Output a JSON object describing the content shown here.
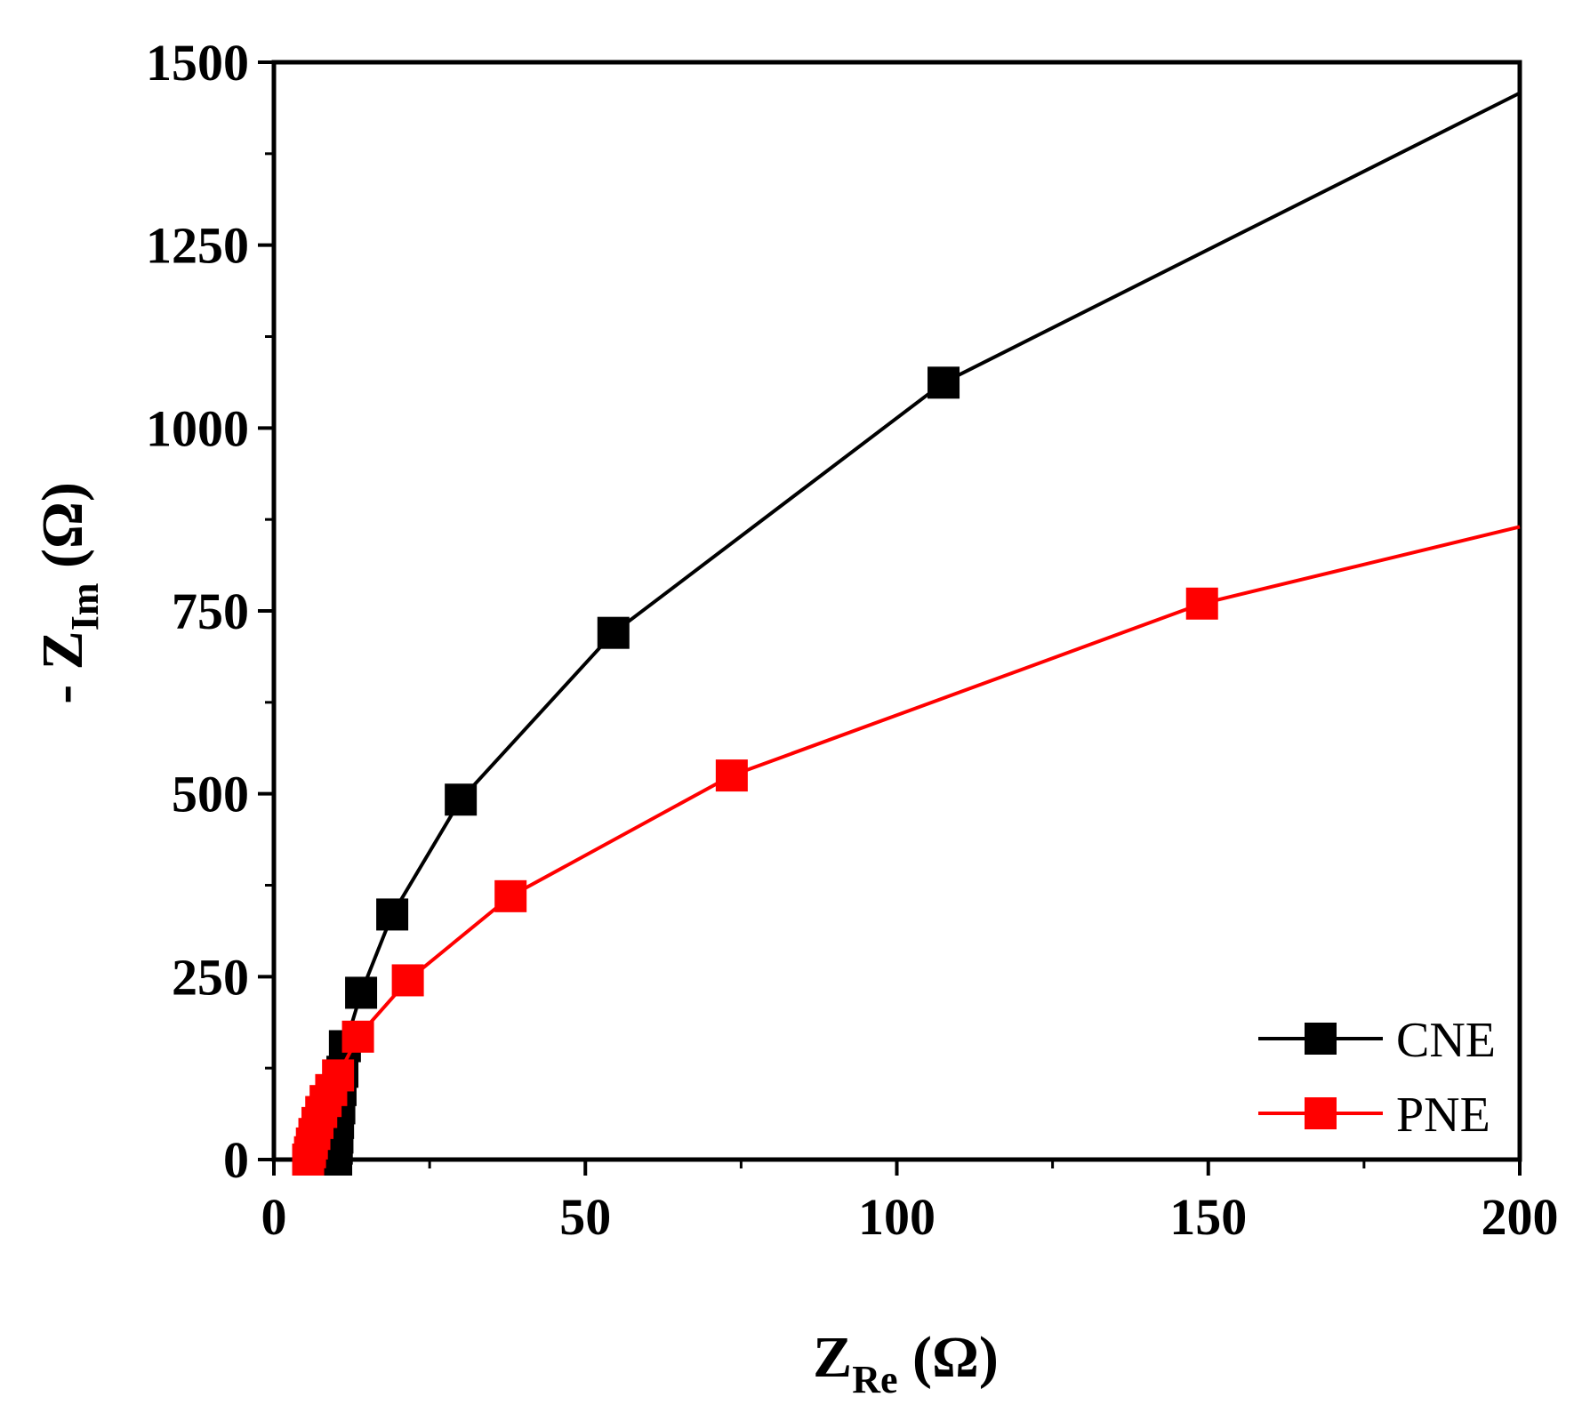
{
  "chart_data": {
    "type": "line",
    "title": "",
    "xlabel": {
      "prefix": "Z",
      "subscript": "Re",
      "suffix": " (Ω)"
    },
    "ylabel": {
      "prefix": "- Z",
      "subscript": "Im",
      "suffix": " (Ω)"
    },
    "xlim": [
      0,
      200
    ],
    "ylim": [
      0,
      1500
    ],
    "xticks": [
      0,
      50,
      100,
      150,
      200
    ],
    "yticks": [
      0,
      250,
      500,
      750,
      1000,
      1250,
      1500
    ],
    "xtick_labels": [
      "0",
      "50",
      "100",
      "150",
      "200"
    ],
    "ytick_labels": [
      "0",
      "250",
      "500",
      "750",
      "1000",
      "1250",
      "1500"
    ],
    "grid": false,
    "legend_position": "bottom-right",
    "series": [
      {
        "name": "CNE",
        "color": "#000000",
        "marker": "square",
        "x": [
          10.0,
          10.1,
          10.2,
          10.3,
          10.5,
          10.7,
          11.0,
          11.4,
          14.0,
          19.0,
          30.0,
          54.5,
          107.5,
          200.0
        ],
        "y": [
          0,
          15,
          30,
          50,
          70,
          95,
          120,
          155,
          228,
          335,
          492,
          720,
          1062,
          1458
        ],
        "marker_indices": [
          0,
          1,
          2,
          3,
          4,
          5,
          6,
          7,
          8,
          9,
          10,
          11,
          12
        ]
      },
      {
        "name": "PNE",
        "color": "#ff0000",
        "marker": "square",
        "x": [
          5.5,
          5.8,
          6.1,
          6.5,
          7.0,
          7.6,
          8.3,
          9.2,
          10.3,
          13.5,
          21.5,
          38.0,
          73.5,
          149.0,
          200.0
        ],
        "y": [
          0,
          10,
          22,
          35,
          50,
          65,
          80,
          95,
          115,
          168,
          245,
          360,
          525,
          760,
          865
        ],
        "marker_indices": [
          0,
          1,
          2,
          3,
          4,
          5,
          6,
          7,
          8,
          9,
          10,
          11,
          12,
          13
        ]
      }
    ]
  }
}
